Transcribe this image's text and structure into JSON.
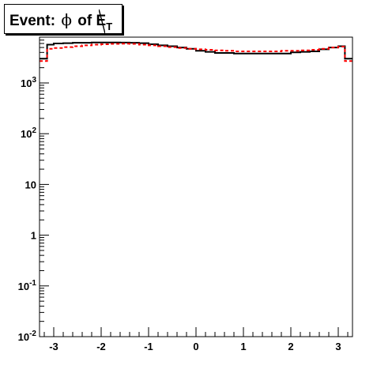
{
  "chart_data": {
    "type": "line",
    "title_parts": {
      "prefix": "Event:",
      "phi": "ϕ",
      "of": "of",
      "met": "E",
      "sub": "T"
    },
    "xlabel": "",
    "ylabel": "",
    "xlim": [
      -3.3,
      3.3
    ],
    "ylim": [
      0.01,
      8000
    ],
    "yscale": "log",
    "grid": false,
    "legend": "none",
    "x_ticks": [
      {
        "value": -3,
        "label": "-3"
      },
      {
        "value": -2,
        "label": "-2"
      },
      {
        "value": -1,
        "label": "-1"
      },
      {
        "value": 0,
        "label": "0"
      },
      {
        "value": 1,
        "label": "1"
      },
      {
        "value": 2,
        "label": "2"
      },
      {
        "value": 3,
        "label": "3"
      }
    ],
    "y_ticks": [
      {
        "value": 0.01,
        "base": "10",
        "exp": "-2"
      },
      {
        "value": 0.1,
        "base": "10",
        "exp": "-1"
      },
      {
        "value": 1,
        "base": "1",
        "exp": ""
      },
      {
        "value": 10,
        "base": "10",
        "exp": ""
      },
      {
        "value": 100,
        "base": "10",
        "exp": "2"
      },
      {
        "value": 1000,
        "base": "10",
        "exp": "3"
      }
    ],
    "bin_edges": [
      -3.3,
      -3.14,
      -3.0,
      -2.8,
      -2.6,
      -2.4,
      -2.2,
      -2.0,
      -1.8,
      -1.6,
      -1.4,
      -1.2,
      -1.0,
      -0.8,
      -0.6,
      -0.4,
      -0.2,
      0.0,
      0.2,
      0.4,
      0.6,
      0.8,
      1.0,
      1.2,
      1.4,
      1.6,
      1.8,
      2.0,
      2.2,
      2.4,
      2.6,
      2.8,
      3.0,
      3.14,
      3.3
    ],
    "series": [
      {
        "color": "#000000",
        "style": "solid",
        "values": [
          3000,
          5700,
          6000,
          6100,
          6200,
          6200,
          6300,
          6300,
          6300,
          6250,
          6200,
          6100,
          5800,
          5500,
          5300,
          5000,
          4700,
          4300,
          4100,
          3900,
          3900,
          3800,
          3800,
          3800,
          3800,
          3800,
          3800,
          4000,
          4100,
          4200,
          4600,
          5000,
          5300,
          3000
        ]
      },
      {
        "color": "#ff0000",
        "style": "dashed",
        "values": [
          2700,
          4700,
          4900,
          5100,
          5300,
          5500,
          5700,
          5800,
          5900,
          5950,
          5900,
          5700,
          5500,
          5300,
          5100,
          4900,
          4700,
          4600,
          4500,
          4400,
          4300,
          4200,
          4200,
          4200,
          4200,
          4200,
          4300,
          4300,
          4400,
          4500,
          4700,
          5000,
          5200,
          2700
        ]
      }
    ]
  }
}
